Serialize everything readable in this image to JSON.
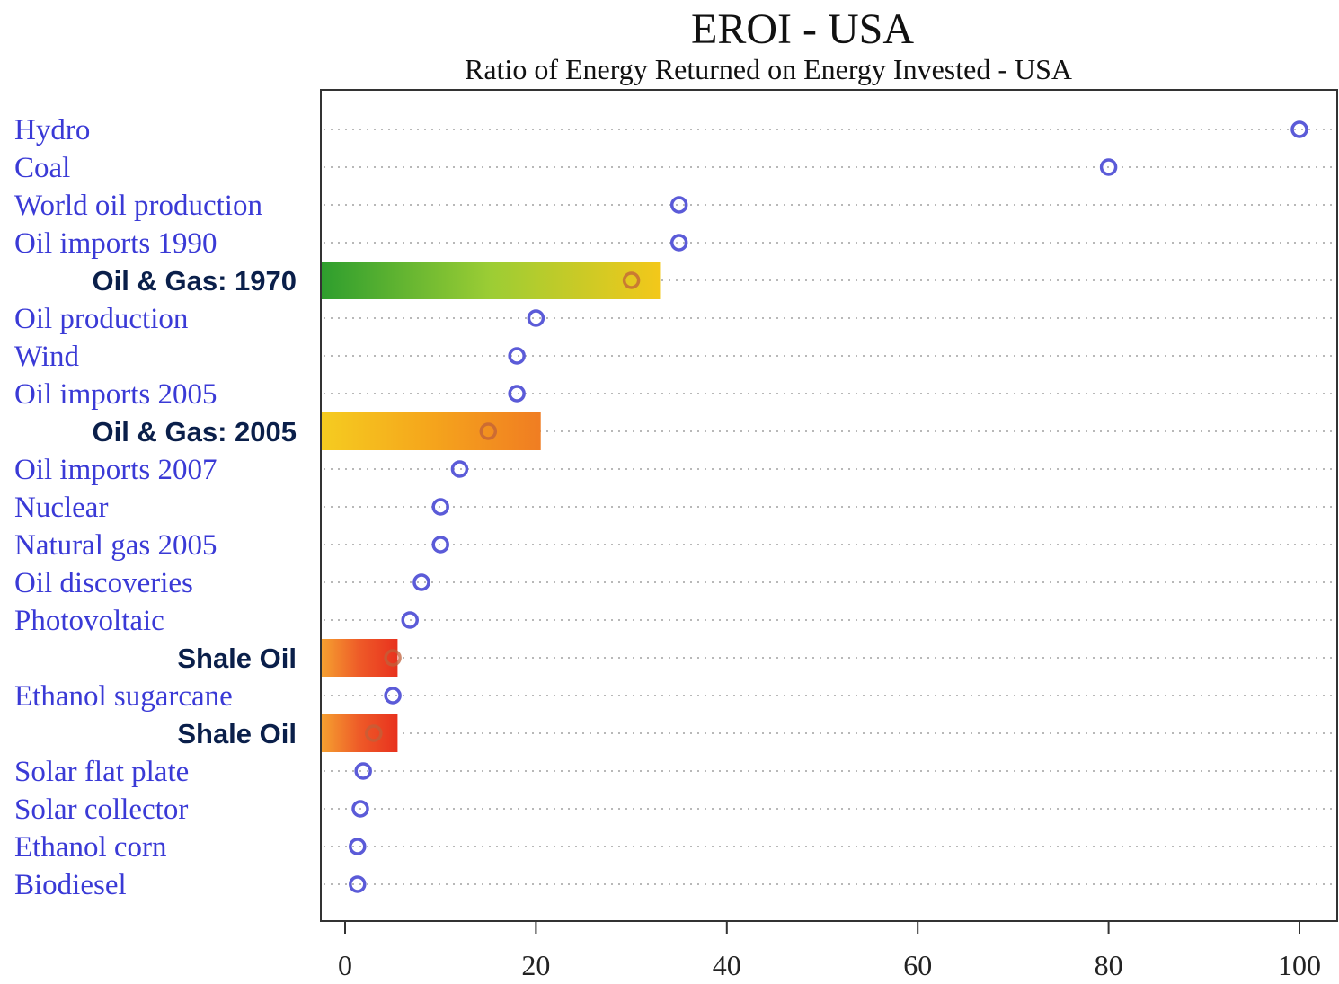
{
  "chart_data": {
    "type": "scatter",
    "title": "EROI - USA",
    "subtitle": "Ratio of Energy Returned on Energy Invested - USA",
    "xlim": [
      0,
      100
    ],
    "x_ticks": [
      "0",
      "20",
      "40",
      "60",
      "80",
      "100"
    ],
    "grid": true,
    "colors": {
      "label": "#3a3ad6",
      "dot": "#5b5bd8",
      "highlight_label": "#0a1f4a",
      "highlight_dot": "#c0603a"
    },
    "rows": [
      {
        "label": "Hydro",
        "value": 100
      },
      {
        "label": "Coal",
        "value": 80
      },
      {
        "label": "World oil production",
        "value": 35
      },
      {
        "label": "Oil imports 1990",
        "value": 35
      },
      {
        "label": "Oil & Gas: 1970",
        "value": 30,
        "highlight": true,
        "range": [
          0,
          33
        ],
        "gradient": [
          "#2e9e2e",
          "#9ccd34",
          "#f3c81a"
        ]
      },
      {
        "label": "Oil production",
        "value": 20
      },
      {
        "label": "Wind",
        "value": 18
      },
      {
        "label": "Oil imports 2005",
        "value": 18
      },
      {
        "label": "Oil & Gas: 2005",
        "value": 15,
        "highlight": true,
        "range": [
          0,
          20.5
        ],
        "gradient": [
          "#f5cc20",
          "#f5a51c",
          "#f07d22"
        ]
      },
      {
        "label": "Oil imports 2007",
        "value": 12
      },
      {
        "label": "Nuclear",
        "value": 10
      },
      {
        "label": "Natural gas 2005",
        "value": 10
      },
      {
        "label": "Oil discoveries",
        "value": 8
      },
      {
        "label": "Photovoltaic",
        "value": 6.8
      },
      {
        "label": "Shale Oil",
        "value": 5,
        "highlight": true,
        "range": [
          0,
          5.5
        ],
        "gradient": [
          "#f5a030",
          "#ee5a28",
          "#e8321e"
        ]
      },
      {
        "label": "Ethanol sugarcane",
        "value": 5
      },
      {
        "label": "Shale Oil",
        "value": 3,
        "highlight": true,
        "range": [
          0,
          5.5
        ],
        "gradient": [
          "#f5a030",
          "#ee5a28",
          "#e8321e"
        ]
      },
      {
        "label": "Solar flat plate",
        "value": 1.9
      },
      {
        "label": "Solar collector",
        "value": 1.6
      },
      {
        "label": "Ethanol corn",
        "value": 1.3
      },
      {
        "label": "Biodiesel",
        "value": 1.3
      }
    ]
  }
}
